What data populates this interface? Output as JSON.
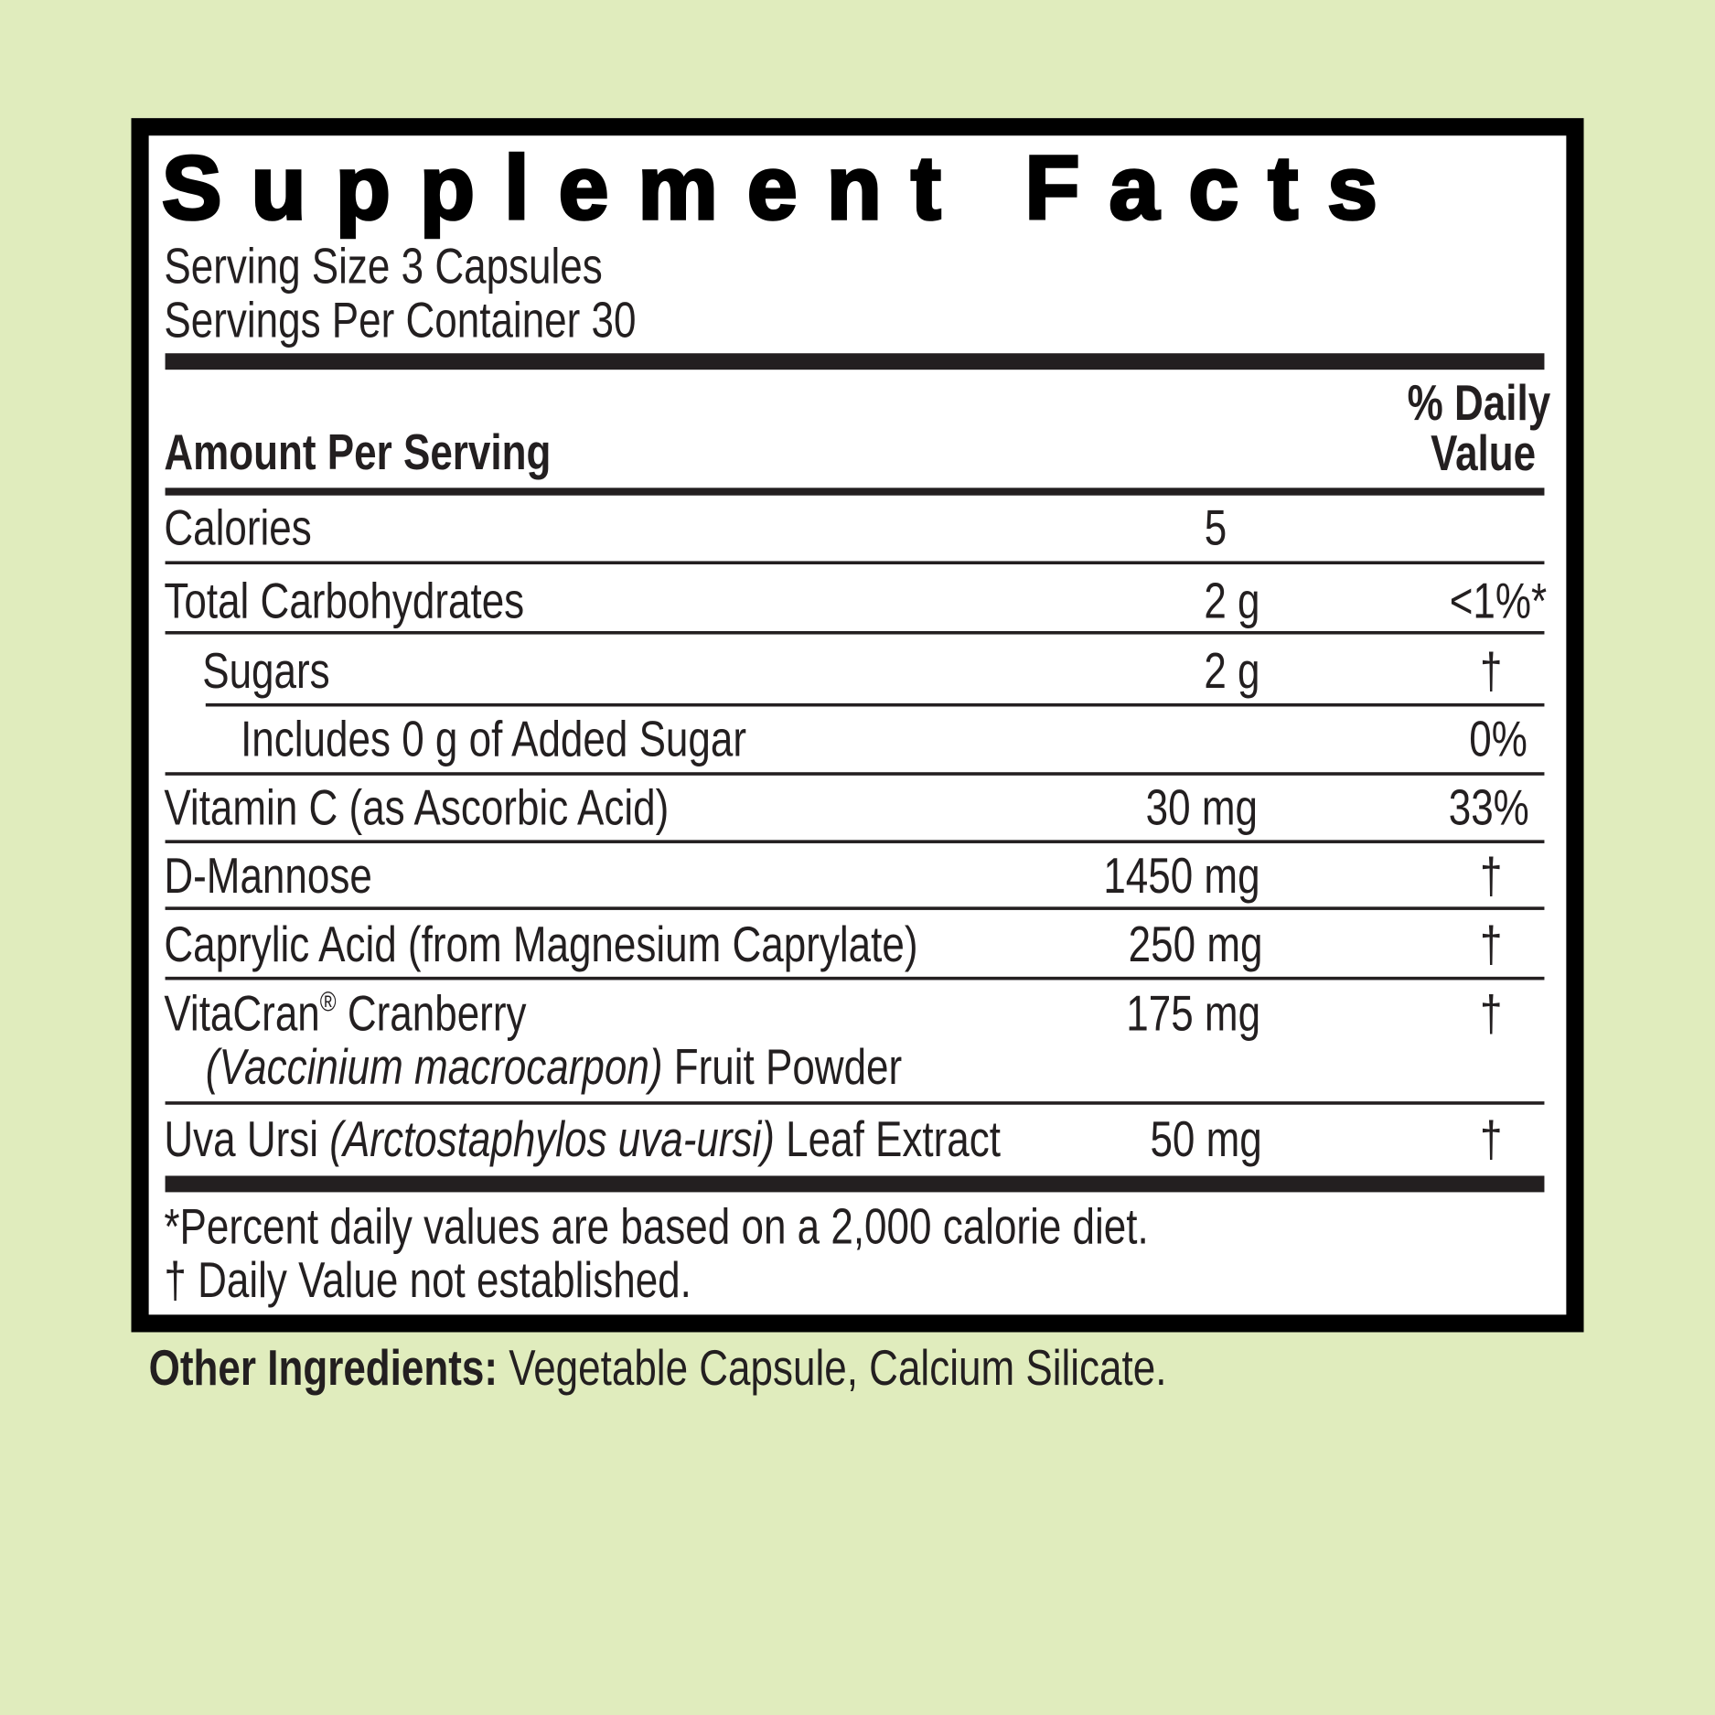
{
  "title": "Supplement Facts",
  "serving_size": "Serving Size 3 Capsules",
  "servings_per_container": "Servings Per Container 30",
  "header": {
    "amount": "Amount Per Serving",
    "dv_line1": "% Daily",
    "dv_line2": "Value"
  },
  "rows": [
    {
      "name": "Calories",
      "amount": "5",
      "dv": ""
    },
    {
      "name": "Total Carbohydrates",
      "amount": "2 g",
      "dv": "<1%*"
    },
    {
      "name": "Sugars",
      "amount": "2 g",
      "dv": "†"
    },
    {
      "name": "Includes 0 g of Added Sugar",
      "amount": "",
      "dv": "0%"
    },
    {
      "name": "Vitamin C (as Ascorbic Acid)",
      "amount": "30 mg",
      "dv": "33%"
    },
    {
      "name": "D-Mannose",
      "amount": "1450 mg",
      "dv": "†"
    },
    {
      "name": "Caprylic Acid (from Magnesium Caprylate)",
      "amount": "250 mg",
      "dv": "†"
    },
    {
      "name": "VitaCran",
      "name_reg": "®",
      "name_rest": " Cranberry",
      "name_line2_italic": "(Vaccinium macrocarpon)",
      "name_line2": " Fruit Powder",
      "amount": "175 mg",
      "dv": "†"
    },
    {
      "name": "Uva Ursi ",
      "name_italic": "(Arctostaphylos uva-ursi)",
      "name_rest": " Leaf Extract",
      "amount": "50 mg",
      "dv": "†"
    }
  ],
  "footnotes": [
    "*Percent daily values are based on a 2,000 calorie diet.",
    "† Daily Value not established."
  ],
  "other_ingredients": {
    "label": "Other Ingredients:",
    "value": " Vegetable Capsule, Calcium Silicate."
  },
  "colors": {
    "background": "#e0ecbd",
    "text": "#231f20",
    "border": "#000000"
  }
}
